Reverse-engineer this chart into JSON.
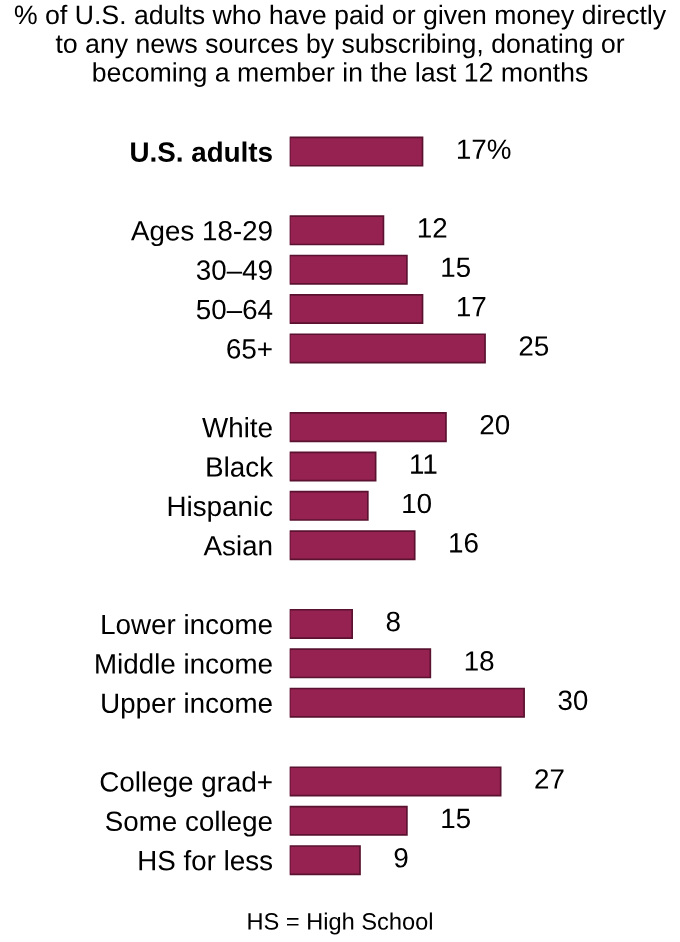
{
  "chart_data": {
    "type": "bar",
    "orientation": "horizontal",
    "title": "% of U.S. adults who have paid or given money directly to any news sources by subscribing, donating or becoming a member in the last 12 months",
    "categories": [
      "U.S. adults",
      null,
      "Ages 18-29",
      "30–49",
      "50–64",
      "65+",
      null,
      "White",
      "Black",
      "Hispanic",
      "Asian",
      null,
      "Lower income",
      "Middle income",
      "Upper income",
      null,
      "College grad+",
      "Some college",
      "HS for less"
    ],
    "values": [
      17,
      null,
      12,
      15,
      17,
      25,
      null,
      20,
      11,
      10,
      16,
      null,
      8,
      18,
      30,
      null,
      27,
      15,
      9
    ],
    "value_labels": [
      "17%",
      null,
      "12",
      "15",
      "17",
      "25",
      null,
      "20",
      "11",
      "10",
      "16",
      null,
      "8",
      "18",
      "30",
      null,
      "27",
      "15",
      "9"
    ],
    "color": "#952250",
    "tick_labels": "y",
    "grid": false,
    "legend": false,
    "annotations": [
      "HS = High School"
    ]
  }
}
